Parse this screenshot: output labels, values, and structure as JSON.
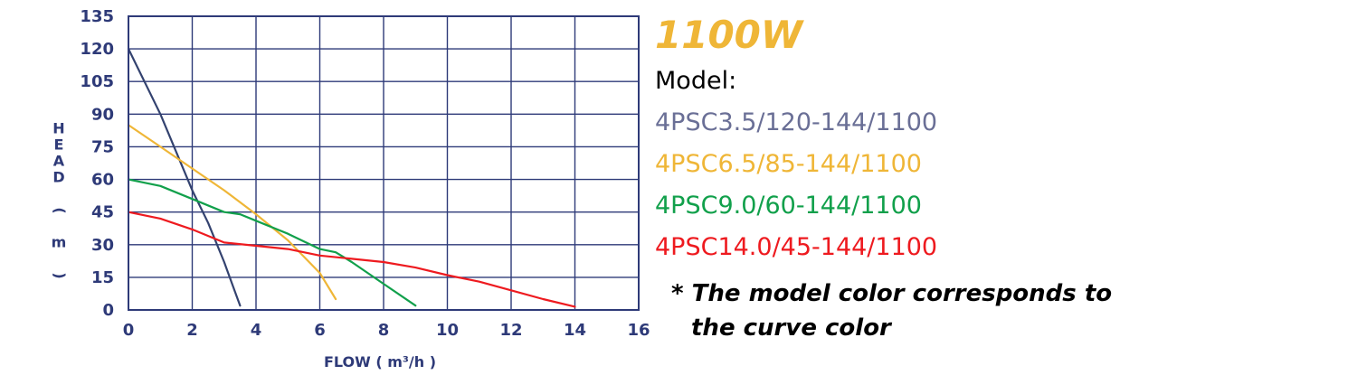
{
  "chart_data": {
    "type": "line",
    "title": "",
    "xlabel": "FLOW ( m³/h )",
    "ylabel": "HEAD ( m )",
    "xlim": [
      0,
      16
    ],
    "ylim": [
      0,
      135
    ],
    "x_ticks": [
      0,
      2,
      4,
      6,
      8,
      10,
      12,
      14,
      16
    ],
    "y_ticks": [
      0,
      15,
      30,
      45,
      60,
      75,
      90,
      105,
      120,
      135
    ],
    "grid": true,
    "legend": "right",
    "series": [
      {
        "name": "4PSC3.5/120-144/1100",
        "color": "#33426f",
        "points": [
          [
            0,
            120
          ],
          [
            1,
            90
          ],
          [
            2,
            55
          ],
          [
            2.5,
            40
          ],
          [
            3,
            22
          ],
          [
            3.3,
            10
          ],
          [
            3.5,
            2
          ]
        ]
      },
      {
        "name": "4PSC6.5/85-144/1100",
        "color": "#efb637",
        "points": [
          [
            0,
            85
          ],
          [
            1,
            75
          ],
          [
            2,
            65
          ],
          [
            3,
            55
          ],
          [
            4,
            44
          ],
          [
            5,
            32
          ],
          [
            6,
            17
          ],
          [
            6.5,
            5
          ]
        ]
      },
      {
        "name": "4PSC9.0/60-144/1100",
        "color": "#11a04b",
        "points": [
          [
            0,
            60
          ],
          [
            1,
            57
          ],
          [
            2,
            51
          ],
          [
            3,
            45
          ],
          [
            3.5,
            44
          ],
          [
            4,
            41
          ],
          [
            5,
            35
          ],
          [
            6,
            28
          ],
          [
            6.5,
            26.5
          ],
          [
            7,
            22
          ],
          [
            8,
            12
          ],
          [
            9,
            2
          ]
        ]
      },
      {
        "name": "4PSC14.0/45-144/1100",
        "color": "#ee1a1f",
        "points": [
          [
            0,
            45
          ],
          [
            1,
            42
          ],
          [
            2,
            37
          ],
          [
            3,
            31
          ],
          [
            4,
            29.5
          ],
          [
            5,
            28
          ],
          [
            6,
            25
          ],
          [
            7,
            23.5
          ],
          [
            8,
            22
          ],
          [
            9,
            19.5
          ],
          [
            10,
            16
          ],
          [
            11,
            13
          ],
          [
            12,
            9
          ],
          [
            13,
            5
          ],
          [
            14,
            1.5
          ]
        ]
      }
    ]
  },
  "legend": {
    "power": "1100W",
    "power_color": "#efb637",
    "model_label": "Model:",
    "models": [
      {
        "label": "4PSC3.5/120-144/1100",
        "color": "#6a6f96"
      },
      {
        "label": "4PSC6.5/85-144/1100",
        "color": "#efb637"
      },
      {
        "label": "4PSC9.0/60-144/1100",
        "color": "#11a04b"
      },
      {
        "label": "4PSC14.0/45-144/1100",
        "color": "#ee1a1f"
      }
    ],
    "note_line1": "* The model color corresponds to",
    "note_line2": "the curve color"
  }
}
